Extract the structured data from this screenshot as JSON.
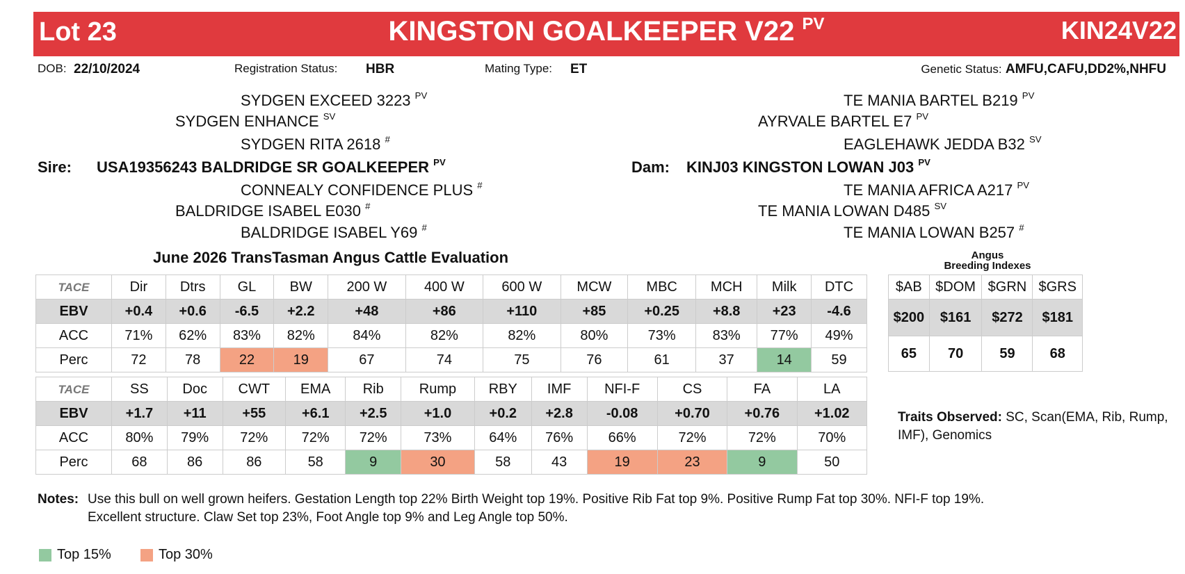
{
  "header": {
    "lot": "Lot 23",
    "name": "KINGSTON GOALKEEPER V22",
    "name_status": "PV",
    "code": "KIN24V22"
  },
  "info": {
    "dob_label": "DOB:",
    "dob": "22/10/2024",
    "reg_label": "Registration Status:",
    "reg": "HBR",
    "mating_label": "Mating Type:",
    "mating": "ET",
    "genetic_label": "Genetic Status:",
    "genetic": "AMFU,CAFU,DD2%,NHFU"
  },
  "pedigree": {
    "sire": {
      "label": "Sire:",
      "name": "USA19356243 BALDRIDGE SR GOALKEEPER",
      "status": "PV",
      "ancestors": [
        {
          "name": "SYDGEN EXCEED 3223",
          "status": "PV"
        },
        {
          "name": "SYDGEN ENHANCE",
          "status": "SV"
        },
        {
          "name": "SYDGEN RITA 2618",
          "status": "#"
        },
        {
          "name": "CONNEALY CONFIDENCE PLUS",
          "status": "#"
        },
        {
          "name": "BALDRIDGE ISABEL E030",
          "status": "#"
        },
        {
          "name": "BALDRIDGE ISABEL Y69",
          "status": "#"
        }
      ]
    },
    "dam": {
      "label": "Dam:",
      "name": "KINJ03 KINGSTON LOWAN J03",
      "status": "PV",
      "ancestors": [
        {
          "name": "TE MANIA BARTEL B219",
          "status": "PV"
        },
        {
          "name": "AYRVALE BARTEL E7",
          "status": "PV"
        },
        {
          "name": "EAGLEHAWK JEDDA B32",
          "status": "SV"
        },
        {
          "name": "TE MANIA AFRICA A217",
          "status": "PV"
        },
        {
          "name": "TE MANIA LOWAN D485",
          "status": "SV"
        },
        {
          "name": "TE MANIA LOWAN B257",
          "status": "#"
        }
      ]
    }
  },
  "evaluation_title": "June 2026 TransTasman Angus Cattle Evaluation",
  "tables": [
    {
      "logo": "TACE",
      "headers": [
        "Dir",
        "Dtrs",
        "GL",
        "BW",
        "200 W",
        "400 W",
        "600 W",
        "MCW",
        "MBC",
        "MCH",
        "Milk",
        "DTC"
      ],
      "rows": [
        {
          "label": "EBV",
          "cells": [
            "+0.4",
            "+0.6",
            "-6.5",
            "+2.2",
            "+48",
            "+86",
            "+110",
            "+85",
            "+0.25",
            "+8.8",
            "+23",
            "-4.6"
          ]
        },
        {
          "label": "ACC",
          "cells": [
            "71%",
            "62%",
            "83%",
            "82%",
            "84%",
            "82%",
            "82%",
            "80%",
            "73%",
            "83%",
            "77%",
            "49%"
          ]
        },
        {
          "label": "Perc",
          "cells": [
            "72",
            "78",
            "22",
            "19",
            "67",
            "74",
            "75",
            "76",
            "61",
            "37",
            "14",
            "59"
          ]
        }
      ]
    },
    {
      "logo": "TACE",
      "headers": [
        "SS",
        "Doc",
        "CWT",
        "EMA",
        "Rib",
        "Rump",
        "RBY",
        "IMF",
        "NFI-F",
        "CS",
        "FA",
        "LA"
      ],
      "rows": [
        {
          "label": "EBV",
          "cells": [
            "+1.7",
            "+11",
            "+55",
            "+6.1",
            "+2.5",
            "+1.0",
            "+0.2",
            "+2.8",
            "-0.08",
            "+0.70",
            "+0.76",
            "+1.02"
          ]
        },
        {
          "label": "ACC",
          "cells": [
            "80%",
            "79%",
            "72%",
            "72%",
            "72%",
            "73%",
            "64%",
            "76%",
            "66%",
            "72%",
            "72%",
            "70%"
          ]
        },
        {
          "label": "Perc",
          "cells": [
            "68",
            "86",
            "86",
            "58",
            "9",
            "30",
            "58",
            "43",
            "19",
            "23",
            "9",
            "50"
          ]
        }
      ]
    }
  ],
  "indexes": {
    "title": [
      "Angus",
      "Breeding Indexes"
    ],
    "headers": [
      "$AB",
      "$DOM",
      "$GRN",
      "$GRS"
    ],
    "values": [
      "$200",
      "$161",
      "$272",
      "$181"
    ],
    "perc": [
      "65",
      "70",
      "59",
      "68"
    ]
  },
  "traits": {
    "label": "Traits Observed:",
    "text": "SC, Scan(EMA, Rib, Rump, IMF), Genomics"
  },
  "notes": {
    "label": "Notes:",
    "lines": [
      "Use this bull on well grown heifers. Gestation Length top 22% Birth Weight top 19%. Positive Rib Fat top 9%. Positive Rump Fat top 30%. NFI-F top 19%.",
      "Excellent structure. Claw Set top 23%, Foot Angle top 9% and Leg Angle top 50%."
    ]
  },
  "legend": [
    {
      "label": "Top 15%",
      "color": "#93c9a0",
      "cells": [
        [
          10
        ],
        [
          4,
          10
        ]
      ]
    },
    {
      "label": "Top 30%",
      "color": "#f4a283",
      "cells": [
        [
          2,
          3
        ],
        [
          5,
          8,
          9
        ]
      ]
    }
  ]
}
